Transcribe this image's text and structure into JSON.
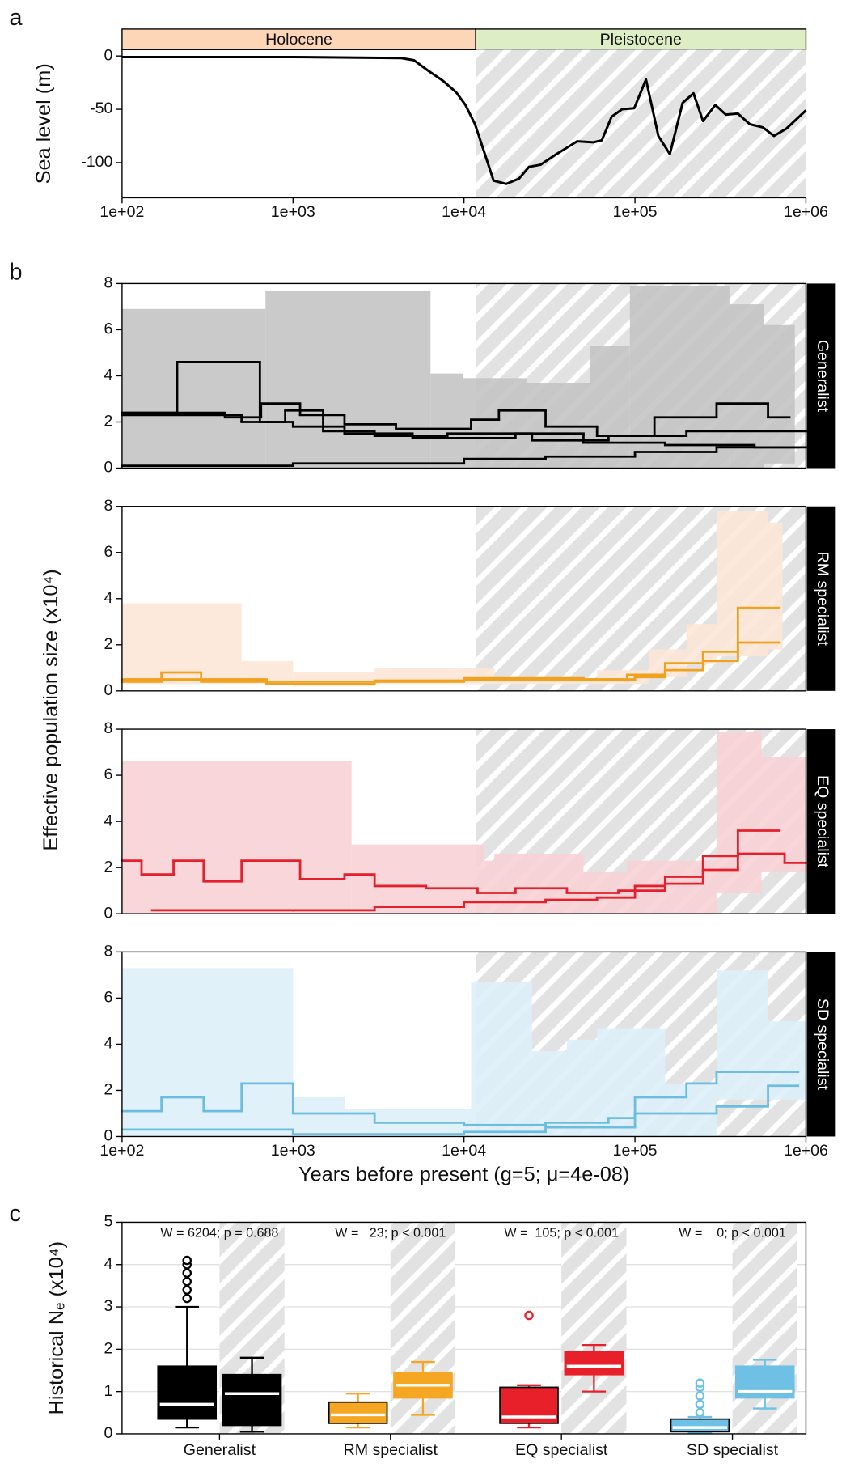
{
  "panel_labels": [
    "a",
    "b",
    "c"
  ],
  "chart_data": [
    {
      "type": "line",
      "ylabel": "Sea level (m)",
      "xscale": "log",
      "xlim": [
        100,
        1000000
      ],
      "ylim": [
        -133,
        6
      ],
      "xticks": [
        {
          "value": 100,
          "label": "1e+02"
        },
        {
          "value": 1000,
          "label": "1e+03"
        },
        {
          "value": 10000,
          "label": "1e+04"
        },
        {
          "value": 100000,
          "label": "1e+05"
        },
        {
          "value": 1000000,
          "label": "1e+06"
        }
      ],
      "yticks": [
        0,
        -50,
        -100
      ],
      "periods": [
        {
          "label": "Holocene",
          "start": 100,
          "end": 11700,
          "color": "#fdd6b8"
        },
        {
          "label": "Pleistocene",
          "start": 11700,
          "end": 1000000,
          "color": "#ddeec4"
        }
      ],
      "color": "#000000",
      "x": [
        100,
        1000,
        4300,
        5100,
        6200,
        7500,
        9000,
        10200,
        11600,
        13000,
        14900,
        17700,
        21000,
        24000,
        28000,
        34000,
        40000,
        46000,
        57000,
        64000,
        73000,
        84000,
        99000,
        116000,
        137000,
        160000,
        190000,
        220000,
        250000,
        295000,
        340000,
        400000,
        470000,
        560000,
        650000,
        770000,
        1000000
      ],
      "values": [
        -1,
        -1,
        -2,
        -4,
        -14,
        -23,
        -34,
        -46,
        -64,
        -88,
        -117,
        -120,
        -115,
        -104,
        -102,
        -93,
        -86,
        -80,
        -81,
        -79,
        -57,
        -50,
        -49,
        -22,
        -75,
        -92,
        -44,
        -35,
        -61,
        -46,
        -55,
        -54,
        -64,
        -67,
        -75,
        -68,
        -51
      ]
    },
    {
      "type": "step",
      "side_label": "Generalist",
      "ylabel": "Effective population size (x10⁴)",
      "xscale": "log",
      "xlim": [
        100,
        1000000
      ],
      "ylim": [
        0,
        8
      ],
      "yticks": [
        0,
        2,
        4,
        6,
        8
      ],
      "band": {
        "color": "#c4c4c4",
        "edges": [
          100,
          690,
          6370,
          9900,
          23200,
          54500,
          93400,
          357000,
          569000,
          861000
        ],
        "upper": [
          6.9,
          7.7,
          4.1,
          3.9,
          3.7,
          5.3,
          7.9,
          7.1,
          6.2
        ],
        "lower": [
          0,
          0,
          0,
          0,
          0,
          0,
          0,
          0,
          0.2
        ]
      },
      "series": [
        {
          "color": "#000000",
          "edges": [
            100,
            210,
            640,
            900,
            1500,
            3000,
            8000,
            25000,
            70000,
            200000,
            1000000
          ],
          "values": [
            2.4,
            4.6,
            2.0,
            2.5,
            1.6,
            1.4,
            1.5,
            1.2,
            1.4,
            1.6
          ]
        },
        {
          "color": "#000000",
          "edges": [
            100,
            400,
            650,
            1100,
            2000,
            4000,
            11000,
            16000,
            30000,
            60000,
            130000,
            300000,
            600000,
            800000
          ],
          "values": [
            2.4,
            2.2,
            2.8,
            2.3,
            1.9,
            1.7,
            2.1,
            2.5,
            1.8,
            1.4,
            2.2,
            2.8,
            2.2
          ]
        },
        {
          "color": "#000000",
          "edges": [
            100,
            500,
            1000,
            2000,
            5000,
            20000,
            50000,
            150000,
            500000,
            900000
          ],
          "values": [
            2.3,
            2.0,
            1.8,
            1.5,
            1.3,
            1.5,
            1.1,
            1.0,
            0.9
          ]
        },
        {
          "color": "#000000",
          "edges": [
            100,
            1000,
            10000,
            30000,
            100000,
            300000,
            1000000
          ],
          "values": [
            0.1,
            0.2,
            0.4,
            0.5,
            0.7,
            0.9
          ]
        }
      ]
    },
    {
      "type": "step",
      "side_label": "RM specialist",
      "xscale": "log",
      "xlim": [
        100,
        1000000
      ],
      "ylim": [
        0,
        8
      ],
      "yticks": [
        0,
        2,
        4,
        6,
        8
      ],
      "band": {
        "color": "#fde6d8",
        "edges": [
          100,
          500,
          1000,
          3000,
          15000,
          60000,
          120000,
          200000,
          300000,
          600000,
          730000
        ],
        "upper": [
          3.8,
          1.3,
          0.8,
          1.0,
          0.5,
          0.9,
          1.8,
          2.9,
          7.8,
          7.3
        ],
        "lower": [
          0.3,
          0.3,
          0.2,
          0.3,
          0.3,
          0.3,
          0.6,
          1.2,
          1.5,
          1.8
        ]
      },
      "series": [
        {
          "color": "#f0a21e",
          "edges": [
            100,
            170,
            290,
            700,
            3000,
            10000,
            60000,
            90000,
            150000,
            250000,
            400000,
            700000
          ],
          "values": [
            0.4,
            0.8,
            0.4,
            0.3,
            0.4,
            0.5,
            0.5,
            0.7,
            1.2,
            1.7,
            3.6
          ]
        },
        {
          "color": "#f0a21e",
          "edges": [
            100,
            700,
            3000,
            10000,
            50000,
            100000,
            150000,
            250000,
            400000,
            700000
          ],
          "values": [
            0.5,
            0.4,
            0.45,
            0.55,
            0.5,
            0.6,
            0.9,
            1.3,
            2.1
          ]
        }
      ]
    },
    {
      "type": "step",
      "side_label": "EQ specialist",
      "xscale": "log",
      "xlim": [
        100,
        1000000
      ],
      "ylim": [
        0,
        8
      ],
      "yticks": [
        0,
        2,
        4,
        6,
        8
      ],
      "band": {
        "color": "#f8d2d5",
        "edges": [
          100,
          2200,
          13000,
          15000,
          50000,
          90000,
          300000,
          550000,
          1000000
        ],
        "upper": [
          6.6,
          3.0,
          2.3,
          2.6,
          1.8,
          2.3,
          7.9,
          6.8
        ],
        "lower": [
          0,
          0,
          0,
          0,
          0,
          0,
          0.9,
          1.8
        ]
      },
      "series": [
        {
          "color": "#e3202b",
          "edges": [
            100,
            130,
            200,
            300,
            500,
            1100,
            2000,
            3000,
            6000,
            12000,
            20000,
            40000,
            80000,
            150000,
            250000,
            400000,
            750000,
            1000000
          ],
          "values": [
            2.3,
            1.7,
            2.3,
            1.4,
            2.3,
            1.5,
            1.7,
            1.2,
            1.1,
            0.9,
            1.1,
            0.9,
            1.0,
            1.3,
            1.9,
            2.6,
            2.2
          ]
        },
        {
          "color": "#e3202b",
          "edges": [
            150,
            1000,
            3000,
            10000,
            30000,
            60000,
            100000,
            150000,
            250000,
            400000,
            700000
          ],
          "values": [
            0.15,
            0.15,
            0.3,
            0.5,
            0.6,
            0.7,
            1.2,
            1.6,
            2.5,
            3.6
          ]
        }
      ]
    },
    {
      "type": "step",
      "side_label": "SD specialist",
      "xlabel": "Years before present (g=5; μ=4e-08)",
      "xscale": "log",
      "xlim": [
        100,
        1000000
      ],
      "ylim": [
        0,
        8
      ],
      "xticks": [
        {
          "value": 100,
          "label": "1e+02"
        },
        {
          "value": 1000,
          "label": "1e+03"
        },
        {
          "value": 10000,
          "label": "1e+04"
        },
        {
          "value": 100000,
          "label": "1e+05"
        },
        {
          "value": 1000000,
          "label": "1e+06"
        }
      ],
      "yticks": [
        0,
        2,
        4,
        6,
        8
      ],
      "band": {
        "color": "#ddf0fa",
        "edges": [
          100,
          1000,
          2000,
          11000,
          25000,
          40000,
          60000,
          150000,
          300000,
          600000,
          1000000
        ],
        "upper": [
          7.3,
          1.7,
          1.2,
          6.7,
          3.7,
          4.2,
          4.7,
          2.3,
          7.2,
          5.0
        ],
        "lower": [
          0,
          0,
          0,
          0,
          0,
          0,
          0,
          0,
          1.6,
          1.6
        ]
      },
      "series": [
        {
          "color": "#6cbde0",
          "edges": [
            100,
            170,
            300,
            500,
            1000,
            3000,
            10000,
            30000,
            70000,
            100000,
            200000,
            300000,
            900000
          ],
          "values": [
            1.1,
            1.7,
            1.1,
            2.3,
            1.0,
            0.6,
            0.5,
            0.6,
            0.8,
            1.7,
            2.3,
            2.8
          ]
        },
        {
          "color": "#6cbde0",
          "edges": [
            100,
            1000,
            10000,
            30000,
            100000,
            300000,
            600000,
            900000
          ],
          "values": [
            0.3,
            0.1,
            0.2,
            0.4,
            1.0,
            1.3,
            2.2
          ]
        }
      ]
    },
    {
      "type": "box",
      "ylabel": "Historical Nₑ (x10⁴)",
      "ylim": [
        0,
        5
      ],
      "yticks": [
        0,
        1,
        2,
        3,
        4,
        5
      ],
      "grid": true,
      "groups": [
        {
          "category": "Generalist",
          "color": "#000000",
          "annotation": "W = 6204; p = 0.688",
          "boxes": [
            {
              "whislo": 0.15,
              "q1": 0.35,
              "med": 0.7,
              "q3": 1.6,
              "whishi": 3.0,
              "fliers": [
                3.2,
                3.4,
                3.6,
                3.8,
                4.0,
                4.1
              ]
            },
            {
              "whislo": 0.05,
              "q1": 0.2,
              "med": 0.95,
              "q3": 1.4,
              "whishi": 1.8,
              "fliers": []
            }
          ]
        },
        {
          "category": "RM specialist",
          "color": "#f5a623",
          "annotation": "W =   23; p < 0.001",
          "boxes": [
            {
              "whislo": 0.15,
              "q1": 0.25,
              "med": 0.45,
              "q3": 0.75,
              "whishi": 0.95,
              "fliers": []
            },
            {
              "whislo": 0.45,
              "q1": 0.85,
              "med": 1.15,
              "q3": 1.45,
              "whishi": 1.7,
              "fliers": []
            }
          ]
        },
        {
          "category": "EQ specialist",
          "color": "#e8202a",
          "annotation": "W =  105; p < 0.001",
          "boxes": [
            {
              "whislo": 0.15,
              "q1": 0.25,
              "med": 0.4,
              "q3": 1.1,
              "whishi": 1.15,
              "fliers": [
                2.8
              ]
            },
            {
              "whislo": 1.0,
              "q1": 1.4,
              "med": 1.6,
              "q3": 1.95,
              "whishi": 2.1,
              "fliers": []
            }
          ]
        },
        {
          "category": "SD specialist",
          "color": "#6ec1e4",
          "annotation": "W =    0; p < 0.001",
          "boxes": [
            {
              "whislo": 0.02,
              "q1": 0.05,
              "med": 0.15,
              "q3": 0.35,
              "whishi": 0.4,
              "fliers": [
                0.5,
                0.7,
                0.9,
                1.1,
                1.2
              ]
            },
            {
              "whislo": 0.6,
              "q1": 0.85,
              "med": 1.0,
              "q3": 1.6,
              "whishi": 1.75,
              "fliers": []
            }
          ]
        }
      ]
    }
  ]
}
